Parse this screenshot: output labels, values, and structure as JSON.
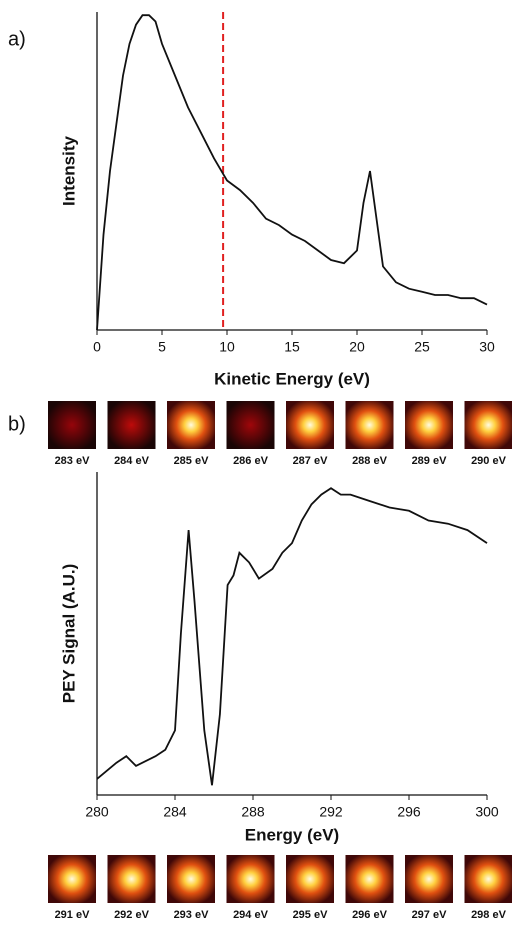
{
  "chart_data": [
    {
      "type": "line",
      "x_label": "Kinetic Energy (eV)",
      "y_label": "Intensity",
      "x": [
        0,
        0.5,
        1,
        1.5,
        2,
        2.5,
        3,
        3.5,
        4,
        4.5,
        5,
        6,
        7,
        8,
        9,
        10,
        11,
        12,
        13,
        14,
        15,
        16,
        17,
        18,
        19,
        20,
        20.5,
        21,
        21.5,
        22,
        23,
        24,
        25,
        26,
        27,
        28,
        29,
        30
      ],
      "series": [
        {
          "color": "#111111",
          "values": [
            0,
            30,
            50,
            65,
            80,
            90,
            96,
            99,
            99,
            97,
            90,
            80,
            70,
            62,
            54,
            47,
            44,
            40,
            35,
            33,
            30,
            28,
            25,
            22,
            21,
            25,
            40,
            50,
            35,
            20,
            15,
            13,
            12,
            11,
            11,
            10,
            10,
            8
          ]
        }
      ],
      "xlim": [
        0,
        30
      ],
      "xticks": [
        0,
        5,
        10,
        15,
        20,
        25,
        30
      ],
      "ylim": [
        0,
        100
      ],
      "vline": {
        "x": 9.7,
        "color": "#e02020"
      }
    },
    {
      "type": "line",
      "x_label": "Energy (eV)",
      "y_label": "PEY Signal (A.U.)",
      "x": [
        280,
        281,
        281.5,
        282,
        283,
        283.5,
        284,
        284.3,
        284.7,
        285,
        285.5,
        285.9,
        286.3,
        286.7,
        287,
        287.3,
        287.8,
        288.3,
        289,
        289.5,
        290,
        290.5,
        291,
        291.5,
        292,
        292.5,
        293,
        294,
        295,
        296,
        297,
        298,
        299,
        300
      ],
      "series": [
        {
          "color": "#111111",
          "values": [
            5,
            10,
            12,
            9,
            12,
            14,
            20,
            50,
            82,
            60,
            20,
            3,
            25,
            65,
            68,
            75,
            72,
            67,
            70,
            75,
            78,
            85,
            90,
            93,
            95,
            93,
            93,
            91,
            89,
            88,
            85,
            84,
            82,
            78
          ]
        }
      ],
      "xlim": [
        280,
        300
      ],
      "xticks": [
        280,
        284,
        288,
        292,
        296,
        300
      ],
      "ylim": [
        0,
        100
      ]
    }
  ],
  "panel_labels": [
    "a)",
    "b)"
  ],
  "thumbnails": {
    "top": [
      "283 eV",
      "284 eV",
      "285 eV",
      "286 eV",
      "287 eV",
      "288 eV",
      "289 eV",
      "290 eV"
    ],
    "bottom": [
      "291 eV",
      "292 eV",
      "293 eV",
      "294 eV",
      "295 eV",
      "296 eV",
      "297 eV",
      "298 eV"
    ]
  }
}
